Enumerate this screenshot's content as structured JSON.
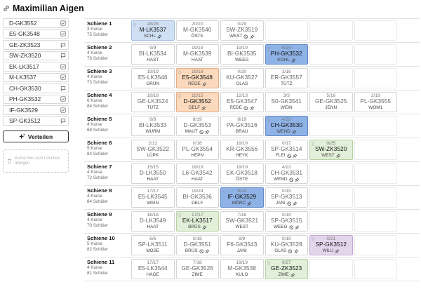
{
  "header": {
    "title": "Maximilian Aigen"
  },
  "sidebar": {
    "items": [
      {
        "label": "D-GK3552",
        "icon": "check"
      },
      {
        "label": "E5-GK3548",
        "icon": "check"
      },
      {
        "label": "GE-ZK3523",
        "icon": "bubble"
      },
      {
        "label": "SW-ZK3520",
        "icon": "bubble"
      },
      {
        "label": "EK-LK3517",
        "icon": "check"
      },
      {
        "label": "M-LK3537",
        "icon": "check"
      },
      {
        "label": "CH-GK3530",
        "icon": "bubble"
      },
      {
        "label": "PH-GK3532",
        "icon": "check"
      },
      {
        "label": "IF-GK3529",
        "icon": "check"
      },
      {
        "label": "SP-GK3512",
        "icon": "bubble"
      }
    ],
    "distribute_label": "Verteilen",
    "dropzone_text": "Kurse hier zum Löschen ablegen"
  },
  "rows": [
    {
      "name": "Schiene 1",
      "courses": "3 Kurse",
      "students": "75 Schüler",
      "cells": [
        {
          "count": "28/28",
          "code": "M-LK3537",
          "teacher": "SCHL",
          "icon": "pin",
          "color": "blue",
          "grip": true
        },
        {
          "count": "20/20",
          "code": "M-GK3540",
          "teacher": "ÖSTE"
        },
        {
          "count": "0/29",
          "code": "SW-ZK3519",
          "teacher": "WEST",
          "icon": "ban-pin"
        },
        {},
        {},
        {}
      ]
    },
    {
      "name": "Schiene 2",
      "courses": "4 Kurse",
      "students": "76 Schüler",
      "cells": [
        {
          "count": "9/9",
          "code": "BI-LK3534",
          "teacher": "HAST"
        },
        {
          "count": "19/19",
          "code": "M-GK3539",
          "teacher": "HAAT"
        },
        {
          "count": "19/19",
          "code": "BI-GK3535",
          "teacher": "WEEG"
        },
        {
          "count": "6/24",
          "code": "PH-GK3532",
          "teacher": "KOHL",
          "icon": "pin",
          "color": "dblue",
          "grip": true
        },
        {},
        {}
      ]
    },
    {
      "name": "Schiene 3",
      "courses": "4 Kurse",
      "students": "73 Schüler",
      "cells": [
        {
          "count": "19/19",
          "code": "E5-LK3546",
          "teacher": "GRÜN"
        },
        {
          "count": "18/18",
          "code": "E5-GK3548",
          "teacher": "REDE",
          "icon": "pin",
          "color": "orange",
          "grip": true
        },
        {
          "count": "0/20",
          "code": "KU-GK3527",
          "teacher": "GLAS"
        },
        {
          "count": "3/16",
          "code": "ER-GK3557",
          "teacher": "TÜTZ"
        },
        {},
        {}
      ]
    },
    {
      "name": "Schiene 4",
      "courses": "6 Kurse",
      "students": "84 Schüler",
      "cells": [
        {
          "count": "18/18",
          "code": "GE-LK3524",
          "teacher": "TÜTZ"
        },
        {
          "count": "15/15",
          "code": "D-GK3552",
          "teacher": "DELF",
          "icon": "pin",
          "color": "orange",
          "grip": true
        },
        {
          "count": "12/13",
          "code": "E5-GK3547",
          "teacher": "REDE",
          "icon": "ban-pin"
        },
        {
          "count": "3/3",
          "code": "S0-GK3541",
          "teacher": "WEIN"
        },
        {
          "count": "5/16",
          "code": "GE-GK3525",
          "teacher": "JENN"
        },
        {
          "count": "2/19",
          "code": "PL-GK3555",
          "teacher": "WOM1"
        }
      ]
    },
    {
      "name": "Schiene 5",
      "courses": "4 Kurse",
      "students": "68 Schüler",
      "cells": [
        {
          "count": "8/8",
          "code": "BI-LK3533",
          "teacher": "WURM"
        },
        {
          "count": "8/19",
          "code": "D-GK3553",
          "teacher": "MAUT",
          "icon": "ban-pin"
        },
        {
          "count": "8/19",
          "code": "PA-GK3516",
          "teacher": "BRAU"
        },
        {
          "count": "4/22",
          "code": "CH-GK3530",
          "teacher": "WEND",
          "icon": "pin",
          "color": "dblue",
          "grip": true
        },
        {},
        {}
      ]
    },
    {
      "name": "Schiene 6",
      "courses": "5 Kurse",
      "students": "84 Schüler",
      "cells": [
        {
          "count": "2/12",
          "code": "SW-GK3522",
          "teacher": "LÜPK"
        },
        {
          "count": "0/16",
          "code": "PL-GK3554",
          "teacher": "HEPN"
        },
        {
          "count": "19/19",
          "code": "KR-GK3556",
          "teacher": "HEYK"
        },
        {
          "count": "0/17",
          "code": "SP-GK3514",
          "teacher": "FLEI",
          "icon": "ban-pin"
        },
        {
          "count": "0/25",
          "code": "SW-ZK3520",
          "teacher": "WEST",
          "icon": "pin",
          "color": "green",
          "grip": true
        },
        {}
      ]
    },
    {
      "name": "Schiene 7",
      "courses": "4 Kurse",
      "students": "72 Schüler",
      "cells": [
        {
          "count": "15/15",
          "code": "D-LK3550",
          "teacher": "HAAT"
        },
        {
          "count": "18/19",
          "code": "L6-GK3542",
          "teacher": "HAAT"
        },
        {
          "count": "19/19",
          "code": "EK-GK3518",
          "teacher": "ÖSTE"
        },
        {
          "count": "4/22",
          "code": "CH-GK3531",
          "teacher": "WEND",
          "icon": "ban-pin"
        },
        {},
        {}
      ]
    },
    {
      "name": "Schiene 8",
      "courses": "4 Kurse",
      "students": "84 Schüler",
      "cells": [
        {
          "count": "17/17",
          "code": "E5-LK3545",
          "teacher": "WEIN"
        },
        {
          "count": "19/24",
          "code": "BI-GK3536",
          "teacher": "DELF"
        },
        {
          "count": "9/24",
          "code": "IF-GK3529",
          "teacher": "MÖRC",
          "icon": "pin",
          "color": "dblue",
          "grip": true
        },
        {
          "count": "0/19",
          "code": "SP-GK3513",
          "teacher": "JANI",
          "icon": "ban-pin"
        },
        {},
        {}
      ]
    },
    {
      "name": "Schiene 9",
      "courses": "4 Kurse",
      "students": "70 Schüler",
      "cells": [
        {
          "count": "16/16",
          "code": "D-LK3549",
          "teacher": "HAAT"
        },
        {
          "count": "17/17",
          "code": "EK-LK3517",
          "teacher": "BRÜS",
          "icon": "pin",
          "color": "green",
          "grip": true
        },
        {
          "count": "7/16",
          "code": "SW-GK3521",
          "teacher": "WEST"
        },
        {
          "count": "0/19",
          "code": "SP-GK3515",
          "teacher": "WEEG",
          "icon": "ban-pin"
        },
        {},
        {}
      ]
    },
    {
      "name": "Schiene 10",
      "courses": "5 Kurse",
      "students": "82 Schüler",
      "cells": [
        {
          "count": "6/6",
          "code": "SP-LK3511",
          "teacher": "MOSE"
        },
        {
          "count": "0/19",
          "code": "D-GK3551",
          "teacher": "BRÜS",
          "icon": "ban-pin"
        },
        {
          "count": "8/9",
          "code": "F6-GK3543",
          "teacher": "JANI"
        },
        {
          "count": "0/19",
          "code": "KU-GK3528",
          "teacher": "GLAS",
          "icon": "ban-pin"
        },
        {
          "count": "0/21",
          "code": "SP-GK3512",
          "teacher": "WILU",
          "icon": "pin",
          "color": "purple",
          "grip": true
        },
        {}
      ]
    },
    {
      "name": "Schiene 11",
      "courses": "4 Kurse",
      "students": "81 Schüler",
      "cells": [
        {
          "count": "17/17",
          "code": "E5-LK3544",
          "teacher": "HAGE"
        },
        {
          "count": "7/18",
          "code": "GE-GK3526",
          "teacher": "ZIME"
        },
        {
          "count": "19/19",
          "code": "M-GK3538",
          "teacher": "KULO"
        },
        {
          "count": "0/27",
          "code": "GE-ZK3523",
          "teacher": "ZIME",
          "icon": "pin",
          "color": "green",
          "grip": true
        },
        {},
        {}
      ]
    }
  ]
}
